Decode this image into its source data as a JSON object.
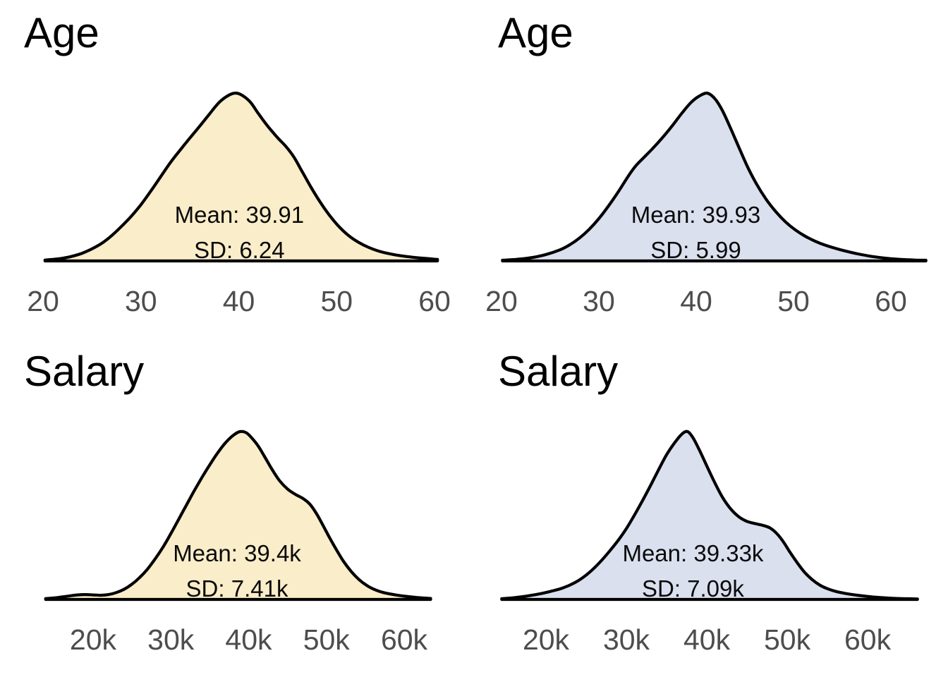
{
  "page": {
    "background": "#ffffff",
    "text_color": "#000000",
    "tick_color": "#4d4d4d",
    "curve_stroke": "#000000",
    "gold_fill": "#FAEDC9",
    "blue_fill": "#DBE0EF"
  },
  "chart_data": [
    {
      "type": "area",
      "variant": "density",
      "title": "Age",
      "mean": 39.91,
      "sd": 6.24,
      "mean_label": "Mean: 39.91",
      "sd_label": "SD: 6.24",
      "fill": "#FAEDC9",
      "stroke": "#000000",
      "xlim": [
        20,
        60
      ],
      "grid": false,
      "legend": false,
      "x_ticks": [
        20,
        30,
        40,
        50,
        60
      ],
      "tick_labels": [
        "20",
        "30",
        "40",
        "50",
        "60"
      ],
      "axis_frac": [
        0.0908,
        0.9167
      ],
      "stats_center_frac": 0.505,
      "points": [
        [
          20.2,
          0.005
        ],
        [
          21,
          0.009
        ],
        [
          22,
          0.016
        ],
        [
          23,
          0.028
        ],
        [
          24,
          0.046
        ],
        [
          25,
          0.072
        ],
        [
          26,
          0.105
        ],
        [
          27,
          0.15
        ],
        [
          28,
          0.205
        ],
        [
          29,
          0.265
        ],
        [
          30,
          0.335
        ],
        [
          31,
          0.415
        ],
        [
          32,
          0.5
        ],
        [
          33,
          0.585
        ],
        [
          34,
          0.66
        ],
        [
          35,
          0.732
        ],
        [
          36,
          0.802
        ],
        [
          37,
          0.875
        ],
        [
          38,
          0.945
        ],
        [
          39,
          0.988
        ],
        [
          39.7,
          1.0
        ],
        [
          40.4,
          0.985
        ],
        [
          41.2,
          0.945
        ],
        [
          42,
          0.878
        ],
        [
          43,
          0.8
        ],
        [
          44,
          0.732
        ],
        [
          44.8,
          0.683
        ],
        [
          45.6,
          0.622
        ],
        [
          46.5,
          0.53
        ],
        [
          47.4,
          0.437
        ],
        [
          48.3,
          0.352
        ],
        [
          49.2,
          0.277
        ],
        [
          50.2,
          0.207
        ],
        [
          51.2,
          0.152
        ],
        [
          52.2,
          0.112
        ],
        [
          53.3,
          0.08
        ],
        [
          54.5,
          0.055
        ],
        [
          56,
          0.036
        ],
        [
          57.5,
          0.024
        ],
        [
          59,
          0.015
        ],
        [
          60.3,
          0.009
        ]
      ]
    },
    {
      "type": "area",
      "variant": "density",
      "title": "Age",
      "mean": 39.93,
      "sd": 5.99,
      "mean_label": "Mean: 39.93",
      "sd_label": "SD: 5.99",
      "fill": "#DBE0EF",
      "stroke": "#000000",
      "xlim": [
        20,
        60
      ],
      "grid": false,
      "legend": false,
      "x_ticks": [
        20,
        30,
        40,
        50,
        60
      ],
      "tick_labels": [
        "20",
        "30",
        "40",
        "50",
        "60"
      ],
      "axis_frac": [
        0.058,
        0.8795
      ],
      "stats_center_frac": 0.468,
      "points": [
        [
          20.1,
          0.004
        ],
        [
          21.5,
          0.009
        ],
        [
          23,
          0.019
        ],
        [
          24.5,
          0.037
        ],
        [
          26,
          0.066
        ],
        [
          27,
          0.096
        ],
        [
          28,
          0.136
        ],
        [
          29,
          0.188
        ],
        [
          30,
          0.252
        ],
        [
          31,
          0.328
        ],
        [
          32,
          0.412
        ],
        [
          33,
          0.503
        ],
        [
          33.8,
          0.567
        ],
        [
          34.6,
          0.615
        ],
        [
          35.5,
          0.668
        ],
        [
          36.5,
          0.732
        ],
        [
          37.5,
          0.802
        ],
        [
          38.5,
          0.878
        ],
        [
          39.4,
          0.94
        ],
        [
          40.2,
          0.978
        ],
        [
          41.1,
          1.0
        ],
        [
          41.9,
          0.968
        ],
        [
          42.7,
          0.895
        ],
        [
          43.5,
          0.795
        ],
        [
          44.4,
          0.675
        ],
        [
          45.3,
          0.558
        ],
        [
          46.2,
          0.458
        ],
        [
          47.2,
          0.366
        ],
        [
          48.2,
          0.292
        ],
        [
          49.2,
          0.231
        ],
        [
          50.2,
          0.184
        ],
        [
          51.2,
          0.147
        ],
        [
          52.2,
          0.118
        ],
        [
          53.2,
          0.095
        ],
        [
          54.3,
          0.075
        ],
        [
          55.4,
          0.058
        ],
        [
          56.6,
          0.042
        ],
        [
          58,
          0.027
        ],
        [
          59.5,
          0.016
        ],
        [
          61,
          0.009
        ],
        [
          62.5,
          0.005
        ],
        [
          63.6,
          0.004
        ]
      ]
    },
    {
      "type": "area",
      "variant": "density",
      "title": "Salary",
      "mean": "39.4k",
      "sd": "7.41k",
      "mean_label": "Mean: 39.4k",
      "sd_label": "SD: 7.41k",
      "fill": "#FAEDC9",
      "stroke": "#000000",
      "xlim": [
        20,
        60
      ],
      "grid": false,
      "legend": false,
      "x_ticks": [
        20,
        30,
        40,
        50,
        60
      ],
      "tick_labels": [
        "20k",
        "30k",
        "40k",
        "50k",
        "60k"
      ],
      "axis_frac": [
        0.1964,
        0.8527
      ],
      "stats_center_frac": 0.5,
      "points": [
        [
          13.9,
          0.005
        ],
        [
          15,
          0.009
        ],
        [
          16,
          0.015
        ],
        [
          17,
          0.021
        ],
        [
          18,
          0.027
        ],
        [
          19,
          0.029
        ],
        [
          20,
          0.027
        ],
        [
          21,
          0.025
        ],
        [
          22,
          0.029
        ],
        [
          23,
          0.041
        ],
        [
          24,
          0.061
        ],
        [
          25,
          0.091
        ],
        [
          26,
          0.131
        ],
        [
          27,
          0.181
        ],
        [
          28,
          0.243
        ],
        [
          29,
          0.312
        ],
        [
          30,
          0.392
        ],
        [
          31,
          0.477
        ],
        [
          32,
          0.562
        ],
        [
          33,
          0.647
        ],
        [
          34,
          0.727
        ],
        [
          35,
          0.802
        ],
        [
          36,
          0.872
        ],
        [
          37,
          0.932
        ],
        [
          38,
          0.977
        ],
        [
          38.9,
          1.0
        ],
        [
          39.7,
          0.993
        ],
        [
          40.4,
          0.962
        ],
        [
          41.2,
          0.916
        ],
        [
          42,
          0.855
        ],
        [
          43,
          0.775
        ],
        [
          44,
          0.706
        ],
        [
          45,
          0.658
        ],
        [
          46,
          0.626
        ],
        [
          47,
          0.601
        ],
        [
          47.9,
          0.566
        ],
        [
          48.7,
          0.513
        ],
        [
          49.5,
          0.447
        ],
        [
          50.4,
          0.368
        ],
        [
          51.3,
          0.295
        ],
        [
          52.2,
          0.227
        ],
        [
          53.2,
          0.166
        ],
        [
          54.2,
          0.118
        ],
        [
          55.2,
          0.083
        ],
        [
          56.3,
          0.057
        ],
        [
          57.5,
          0.039
        ],
        [
          59,
          0.026
        ],
        [
          60.5,
          0.017
        ],
        [
          62,
          0.01
        ],
        [
          63.4,
          0.006
        ]
      ]
    },
    {
      "type": "area",
      "variant": "density",
      "title": "Salary",
      "mean": "39.33k",
      "sd": "7.09k",
      "mean_label": "Mean: 39.33k",
      "sd_label": "SD: 7.09k",
      "fill": "#DBE0EF",
      "stroke": "#000000",
      "xlim": [
        20,
        60
      ],
      "grid": false,
      "legend": false,
      "x_ticks": [
        20,
        30,
        40,
        50,
        60
      ],
      "tick_labels": [
        "20k",
        "30k",
        "40k",
        "50k",
        "60k"
      ],
      "axis_frac": [
        0.1518,
        0.8304
      ],
      "stats_center_frac": 0.462,
      "points": [
        [
          14.5,
          0.004
        ],
        [
          16,
          0.01
        ],
        [
          17.5,
          0.019
        ],
        [
          19,
          0.031
        ],
        [
          20,
          0.041
        ],
        [
          21,
          0.053
        ],
        [
          22,
          0.067
        ],
        [
          23,
          0.086
        ],
        [
          24,
          0.111
        ],
        [
          25,
          0.145
        ],
        [
          26,
          0.187
        ],
        [
          27,
          0.237
        ],
        [
          28,
          0.293
        ],
        [
          29,
          0.353
        ],
        [
          30,
          0.422
        ],
        [
          31,
          0.502
        ],
        [
          32,
          0.588
        ],
        [
          33,
          0.678
        ],
        [
          34,
          0.772
        ],
        [
          35,
          0.862
        ],
        [
          36,
          0.933
        ],
        [
          36.9,
          0.985
        ],
        [
          37.6,
          1.0
        ],
        [
          38.3,
          0.962
        ],
        [
          39.1,
          0.888
        ],
        [
          40,
          0.796
        ],
        [
          41,
          0.695
        ],
        [
          42,
          0.605
        ],
        [
          43,
          0.538
        ],
        [
          44,
          0.492
        ],
        [
          45,
          0.465
        ],
        [
          46,
          0.452
        ],
        [
          47,
          0.441
        ],
        [
          47.9,
          0.425
        ],
        [
          48.7,
          0.393
        ],
        [
          49.5,
          0.345
        ],
        [
          50.3,
          0.285
        ],
        [
          51.2,
          0.222
        ],
        [
          52.1,
          0.165
        ],
        [
          53.1,
          0.118
        ],
        [
          54.1,
          0.084
        ],
        [
          55.1,
          0.062
        ],
        [
          56.1,
          0.047
        ],
        [
          57.2,
          0.036
        ],
        [
          58.4,
          0.027
        ],
        [
          59.8,
          0.019
        ],
        [
          61.3,
          0.012
        ],
        [
          63,
          0.007
        ],
        [
          65,
          0.004
        ],
        [
          66.2,
          0.003
        ]
      ]
    }
  ]
}
